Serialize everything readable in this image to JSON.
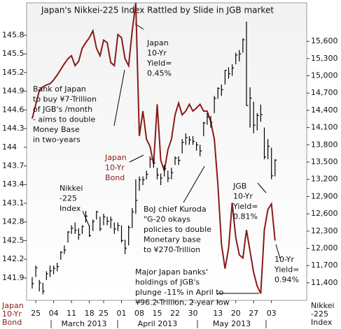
{
  "chart_data": {
    "type": "line",
    "title": "Japan's Nikkei-225 Index Rattled by Slide in JGB market",
    "categories": [
      null,
      "25",
      null,
      null,
      null,
      null,
      "04",
      null,
      null,
      null,
      null,
      "11",
      null,
      null,
      null,
      null,
      "18",
      null,
      null,
      null,
      "25",
      null,
      null,
      null,
      null,
      "01",
      null,
      null,
      null,
      null,
      "08",
      null,
      null,
      null,
      null,
      "15",
      null,
      null,
      null,
      null,
      "22",
      null,
      null,
      null,
      null,
      "30",
      null,
      null,
      null,
      null,
      null,
      null,
      "13",
      null,
      null,
      null,
      null,
      "20",
      null,
      null,
      null,
      null,
      "27",
      null,
      null,
      null,
      null,
      "03",
      null
    ],
    "month_labels": [
      "March 2013",
      "April 2013",
      "May 2013"
    ],
    "ylabel": [
      "Japan",
      "10-Yr",
      "Bond"
    ],
    "y2label": [
      "Nikkei",
      "-225",
      "Index"
    ],
    "ylim": [
      141.54,
      146.32
    ],
    "yticks": [
      141.9,
      142.2,
      142.5,
      142.8,
      143.1,
      143.4,
      143.7,
      144,
      144.3,
      144.6,
      144.9,
      145.2,
      145.5,
      145.8
    ],
    "y2lim": [
      11095,
      16270
    ],
    "y2ticks": [
      {
        "value": 11400,
        "label": "11,400"
      },
      {
        "value": 11700,
        "label": "11,700"
      },
      {
        "value": 12000,
        "label": "12,000"
      },
      {
        "value": 12300,
        "label": "12,300"
      },
      {
        "value": 12600,
        "label": "12,600"
      },
      {
        "value": 12900,
        "label": "12,900"
      },
      {
        "value": 13200,
        "label": "13,200"
      },
      {
        "value": 13500,
        "label": "13,500"
      },
      {
        "value": 13800,
        "label": "13,800"
      },
      {
        "value": 14100,
        "label": "14,100"
      },
      {
        "value": 14400,
        "label": "14,400"
      },
      {
        "value": 14700,
        "label": "14,700"
      },
      {
        "value": 15000,
        "label": "15,000"
      },
      {
        "value": 15300,
        "label": "15,300"
      },
      {
        "value": 15600,
        "label": "15,600"
      }
    ],
    "series": [
      {
        "color": "#8b1a1a",
        "values": [
          144.46,
          144.69,
          144.91,
          144.97,
          145.0,
          145.02,
          145.08,
          145.16,
          145.25,
          145.34,
          145.42,
          145.47,
          145.31,
          145.38,
          145.59,
          145.68,
          145.76,
          145.87,
          145.59,
          145.47,
          145.72,
          145.68,
          145.36,
          145.31,
          145.81,
          145.76,
          145.42,
          145.31,
          145.87,
          146.32,
          144.18,
          144.58,
          144.13,
          144.01,
          143.73,
          144.69,
          143.79,
          143.62,
          143.96,
          144.13,
          144.52,
          144.71,
          144.52,
          144.58,
          144.69,
          144.58,
          144.63,
          144.69,
          144.58,
          144.58,
          144.41,
          144.13,
          143.4,
          142.44,
          142.05,
          142.38,
          143.11,
          142.55,
          142.27,
          142.22,
          142.67,
          142.33,
          141.99,
          141.77,
          141.65,
          142.67,
          143.0,
          143.09,
          142.5
        ]
      },
      {
        "type": "ohlc",
        "axis": "y2",
        "color": "#000000",
        "values": [
          11386,
          11662,
          11399,
          11254,
          11559,
          11606,
          11652,
          11683,
          11932,
          11968,
          12283,
          12349,
          12314,
          12239,
          12381,
          12560,
          12220,
          12468,
          12635,
          12338,
          12546,
          12471,
          12494,
          12336,
          12398,
          12135,
          12003,
          12362,
          12634,
          12833,
          13192,
          13192,
          13288,
          13549,
          13485,
          13275,
          13221,
          13382,
          13220,
          13316,
          13568,
          13529,
          13843,
          13926,
          13884,
          13860,
          13799,
          13694,
          14180,
          14285,
          14191,
          14607,
          14782,
          14758,
          15096,
          15037,
          15138,
          15360,
          15381,
          15627,
          14483,
          14612,
          14142,
          14311,
          14326,
          13589,
          13774,
          13261,
          13534
        ],
        "high": [
          11500,
          11700,
          11450,
          11400,
          11600,
          11700,
          11700,
          11750,
          11950,
          12050,
          12300,
          12400,
          12450,
          12350,
          12400,
          12650,
          12400,
          12500,
          12650,
          12550,
          12600,
          12550,
          12550,
          12450,
          12450,
          12400,
          12150,
          12400,
          12700,
          13200,
          13250,
          13250,
          13350,
          13600,
          13550,
          13400,
          13300,
          13450,
          13350,
          13400,
          13600,
          13600,
          13900,
          14000,
          13950,
          13950,
          13850,
          13800,
          14200,
          14350,
          14300,
          14650,
          14800,
          14850,
          15100,
          15150,
          15200,
          15400,
          15450,
          15650,
          15942,
          14800,
          14550,
          14350,
          14500,
          14100,
          13900,
          13750,
          13550
        ],
        "low": [
          11300,
          11500,
          11250,
          11200,
          11450,
          11500,
          11550,
          11600,
          11800,
          11900,
          12100,
          12250,
          12250,
          12150,
          12250,
          12450,
          12200,
          12300,
          12500,
          12300,
          12400,
          12400,
          12350,
          12250,
          12300,
          12100,
          11900,
          12050,
          12350,
          12600,
          13000,
          13100,
          13200,
          13400,
          13400,
          13200,
          13100,
          13250,
          13150,
          13200,
          13450,
          13450,
          13650,
          13800,
          13800,
          13800,
          13700,
          13600,
          13950,
          14150,
          14100,
          14350,
          14600,
          14650,
          14850,
          14950,
          15000,
          15200,
          15250,
          15400,
          14483,
          14100,
          14000,
          14050,
          14200,
          13550,
          13550,
          13200,
          13250
        ]
      }
    ],
    "annotations": [
      {
        "lines": [
          "Japan",
          "10-Yr",
          "Yield=",
          "0.45%"
        ]
      },
      {
        "lines": [
          "Bank of Japan",
          "to buy ¥7-Trillion",
          "of JGB's /month",
          "- aims to double",
          "Money Base",
          "in two-years"
        ]
      },
      {
        "lines": [
          "Japan",
          "10-Yr",
          "Bond"
        ]
      },
      {
        "lines": [
          "Nikkei",
          "-225",
          "Index"
        ]
      },
      {
        "lines": [
          "BoJ chief Kuroda",
          "\"G-20 okays",
          "policies to double",
          "Monetary base",
          "to ¥270-Trillion"
        ]
      },
      {
        "lines": [
          "JGB",
          "10-Yr",
          "Yield=",
          "0.81%"
        ]
      },
      {
        "lines": [
          "10-Yr",
          "Yield=",
          "0.94%"
        ]
      },
      {
        "lines": [
          "Major Japan banks'",
          "holdings of JGB's",
          "plunge -11% in April to",
          "¥96.2-Trillion, 2-year low"
        ]
      }
    ]
  }
}
